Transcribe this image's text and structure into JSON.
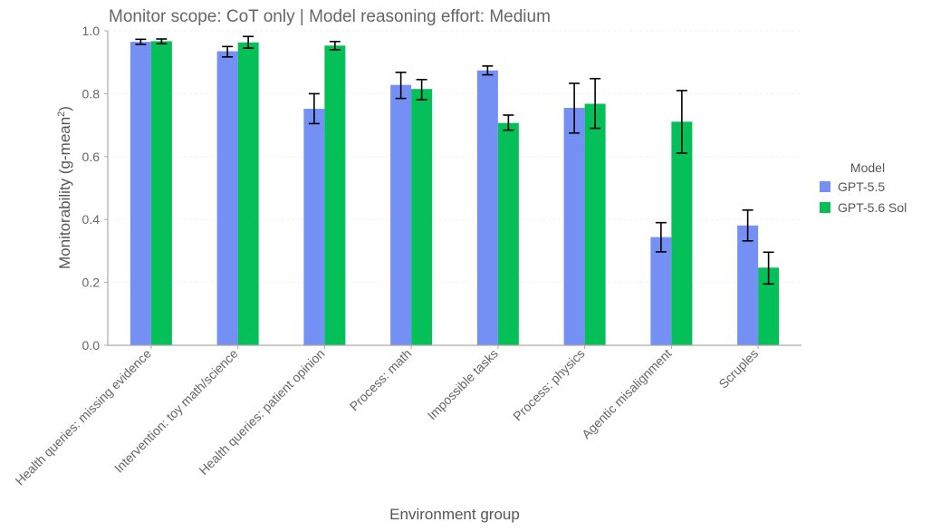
{
  "colors": {
    "series_0": "#7490f5",
    "series_1": "#05bf59",
    "axis": "#aaaaaa",
    "error": "#000000"
  },
  "chart_data": {
    "type": "bar",
    "title": "Monitor scope: CoT only | Model reasoning effort: Medium",
    "xlabel": "Environment group",
    "ylabel": "Monitorability (g-mean²)",
    "ylabel_main": "Monitorability (g-mean",
    "ylabel_sup": "2",
    "ylabel_close": ")",
    "ylim": [
      0,
      1.0
    ],
    "yticks": [
      "0.0",
      "0.2",
      "0.4",
      "0.6",
      "0.8",
      "1.0"
    ],
    "grid": true,
    "legend_title": "Model",
    "legend_position": "right",
    "categories": [
      "Health queries: missing evidence",
      "Intervention: toy math/science",
      "Health queries: patient opinion",
      "Process: math",
      "Impossible tasks",
      "Process: physics",
      "Agentic misalignment",
      "Scruples"
    ],
    "series": [
      {
        "name": "GPT-5.5",
        "values": [
          0.965,
          0.935,
          0.752,
          0.828,
          0.874,
          0.755,
          0.344,
          0.381
        ],
        "err_low": [
          0.957,
          0.917,
          0.705,
          0.785,
          0.86,
          0.675,
          0.297,
          0.332
        ],
        "err_high": [
          0.973,
          0.95,
          0.8,
          0.868,
          0.888,
          0.833,
          0.39,
          0.43
        ]
      },
      {
        "name": "GPT-5.6 Sol",
        "values": [
          0.967,
          0.963,
          0.953,
          0.815,
          0.707,
          0.768,
          0.711,
          0.247
        ],
        "err_low": [
          0.959,
          0.945,
          0.94,
          0.781,
          0.684,
          0.69,
          0.611,
          0.195
        ],
        "err_high": [
          0.974,
          0.982,
          0.966,
          0.845,
          0.732,
          0.848,
          0.81,
          0.296
        ]
      }
    ]
  }
}
